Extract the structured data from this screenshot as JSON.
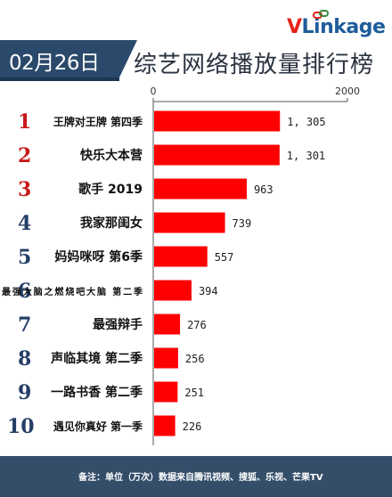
{
  "header": {
    "brand_v": "V",
    "brand_rest": "Link",
    "brand_tail": "age",
    "date": "02月26日",
    "title": "综艺网络播放量排行榜"
  },
  "colors": {
    "bar": "#ff0000",
    "rank": "#c81818",
    "rank_low": "#243e66",
    "axis": "#555555",
    "brand_red": "#e8231c",
    "brand_blue": "#1f5d9b"
  },
  "chart_data": {
    "type": "bar",
    "orientation": "horizontal",
    "categories": [
      "王牌对王牌 第四季",
      "快乐大本营",
      "歌手 2019",
      "我家那闺女",
      "妈妈咪呀 第6季",
      "最强大脑之燃烧吧大脑 第二季",
      "最强辩手",
      "声临其境 第二季",
      "一路书香 第二季",
      "遇见你真好 第一季"
    ],
    "ranks": [
      "1",
      "2",
      "3",
      "4",
      "5",
      "6",
      "7",
      "8",
      "9",
      "10"
    ],
    "values": [
      1305,
      1301,
      963,
      739,
      557,
      394,
      276,
      256,
      251,
      226
    ],
    "value_labels": [
      "1, 305",
      "1, 301",
      "963",
      "739",
      "557",
      "394",
      "276",
      "256",
      "251",
      "226"
    ],
    "xlim": [
      0,
      2000
    ],
    "xticks": [
      "0",
      "2000"
    ],
    "grid": false
  },
  "footer": {
    "note": "备注：单位（万次）数据来自腾讯视频、搜狐、乐视、芒果TV"
  }
}
